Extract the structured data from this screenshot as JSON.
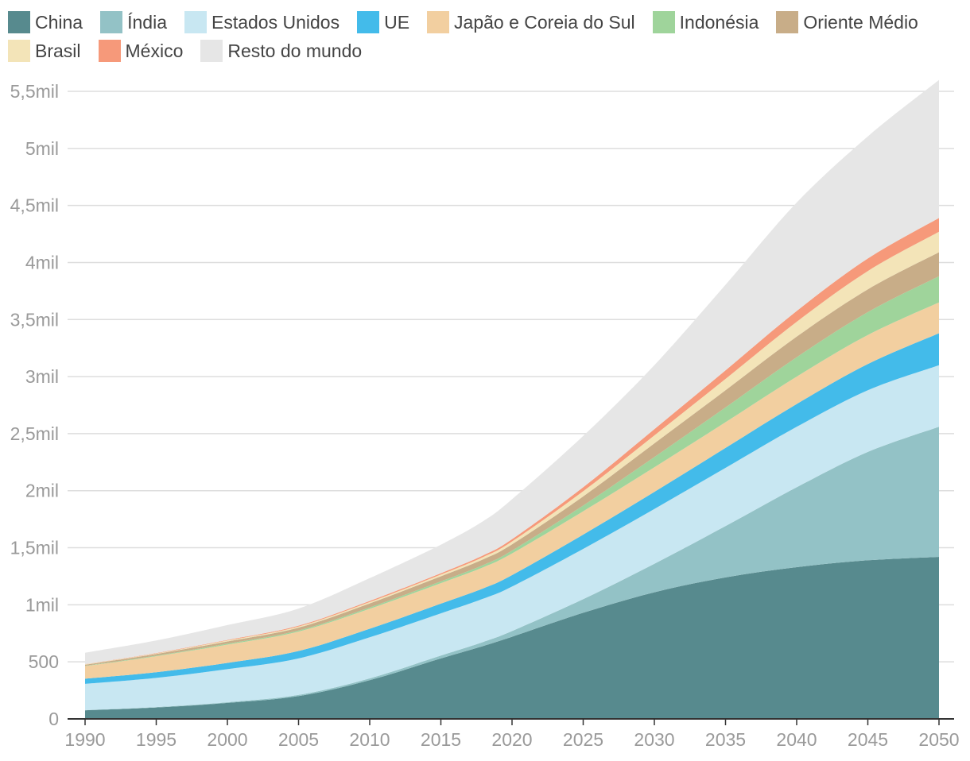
{
  "colors": {
    "china": "#578a8e",
    "india": "#93c2c6",
    "eua": "#c8e7f2",
    "ue": "#43bbea",
    "japao": "#f2cfa0",
    "indonesia": "#9fd49b",
    "oriente": "#c8ad88",
    "brasil": "#f3e4b8",
    "mexico": "#f6997a",
    "resto": "#e6e6e6",
    "grid": "#dddddd",
    "axis": "#333333",
    "tick_text": "#9a9a9a"
  },
  "chart_data": {
    "type": "area",
    "stacked": true,
    "title": "",
    "xlabel": "",
    "ylabel": "",
    "xlim": [
      1990,
      2050
    ],
    "ylim": [
      0,
      5500
    ],
    "legend_position": "top",
    "grid": true,
    "x": [
      1990,
      1995,
      2000,
      2005,
      2010,
      2015,
      2018,
      2020,
      2025,
      2030,
      2035,
      2040,
      2045,
      2050
    ],
    "series": [
      {
        "key": "china",
        "name": "China",
        "values": [
          75,
          100,
          140,
          200,
          340,
          530,
          640,
          720,
          930,
          1110,
          1240,
          1330,
          1390,
          1420
        ]
      },
      {
        "key": "india",
        "name": "Índia",
        "values": [
          2,
          4,
          6,
          10,
          15,
          25,
          35,
          50,
          120,
          250,
          450,
          700,
          950,
          1140
        ]
      },
      {
        "key": "eua",
        "name": "Estados Unidos",
        "values": [
          230,
          255,
          290,
          320,
          360,
          370,
          380,
          390,
          440,
          480,
          510,
          530,
          540,
          540
        ]
      },
      {
        "key": "ue",
        "name": "UE",
        "values": [
          45,
          50,
          55,
          65,
          75,
          85,
          90,
          100,
          125,
          150,
          175,
          200,
          230,
          280
        ]
      },
      {
        "key": "japao",
        "name": "Japão e Coreia do Sul",
        "values": [
          110,
          140,
          160,
          170,
          175,
          180,
          185,
          190,
          205,
          215,
          225,
          240,
          255,
          270
        ]
      },
      {
        "key": "indonesia",
        "name": "Indonésia",
        "values": [
          3,
          5,
          8,
          10,
          12,
          15,
          20,
          25,
          50,
          90,
          130,
          170,
          200,
          230
        ]
      },
      {
        "key": "oriente",
        "name": "Oriente Médio",
        "values": [
          10,
          15,
          20,
          25,
          35,
          45,
          50,
          55,
          80,
          120,
          150,
          180,
          200,
          210
        ]
      },
      {
        "key": "brasil",
        "name": "Brasil",
        "values": [
          3,
          5,
          8,
          10,
          12,
          15,
          20,
          25,
          45,
          70,
          100,
          130,
          160,
          180
        ]
      },
      {
        "key": "mexico",
        "name": "México",
        "values": [
          2,
          3,
          5,
          7,
          10,
          12,
          15,
          20,
          35,
          55,
          75,
          95,
          110,
          120
        ]
      },
      {
        "key": "resto",
        "name": "Resto do mundo",
        "values": [
          100,
          110,
          130,
          150,
          200,
          250,
          300,
          350,
          450,
          560,
          750,
          950,
          1070,
          1210
        ]
      }
    ],
    "legend_rows": [
      [
        "china",
        "india",
        "eua",
        "ue",
        "japao",
        "indonesia",
        "oriente"
      ],
      [
        "brasil",
        "mexico",
        "resto"
      ]
    ],
    "y_ticks": [
      0,
      500,
      1000,
      1500,
      2000,
      2500,
      3000,
      3500,
      4000,
      4500,
      5000,
      5500
    ],
    "y_tick_labels": [
      "0",
      "500",
      "1mil",
      "1,5mil",
      "2mil",
      "2,5mil",
      "3mil",
      "3,5mil",
      "4mil",
      "4,5mil",
      "5mil",
      "5,5mil"
    ],
    "x_ticks": [
      1990,
      1995,
      2000,
      2005,
      2010,
      2015,
      2020,
      2025,
      2030,
      2035,
      2040,
      2045,
      2050
    ],
    "x_tick_labels": [
      "1990",
      "1995",
      "2000",
      "2005",
      "2010",
      "2015",
      "2020",
      "2025",
      "2030",
      "2035",
      "2040",
      "2045",
      "2050"
    ]
  }
}
